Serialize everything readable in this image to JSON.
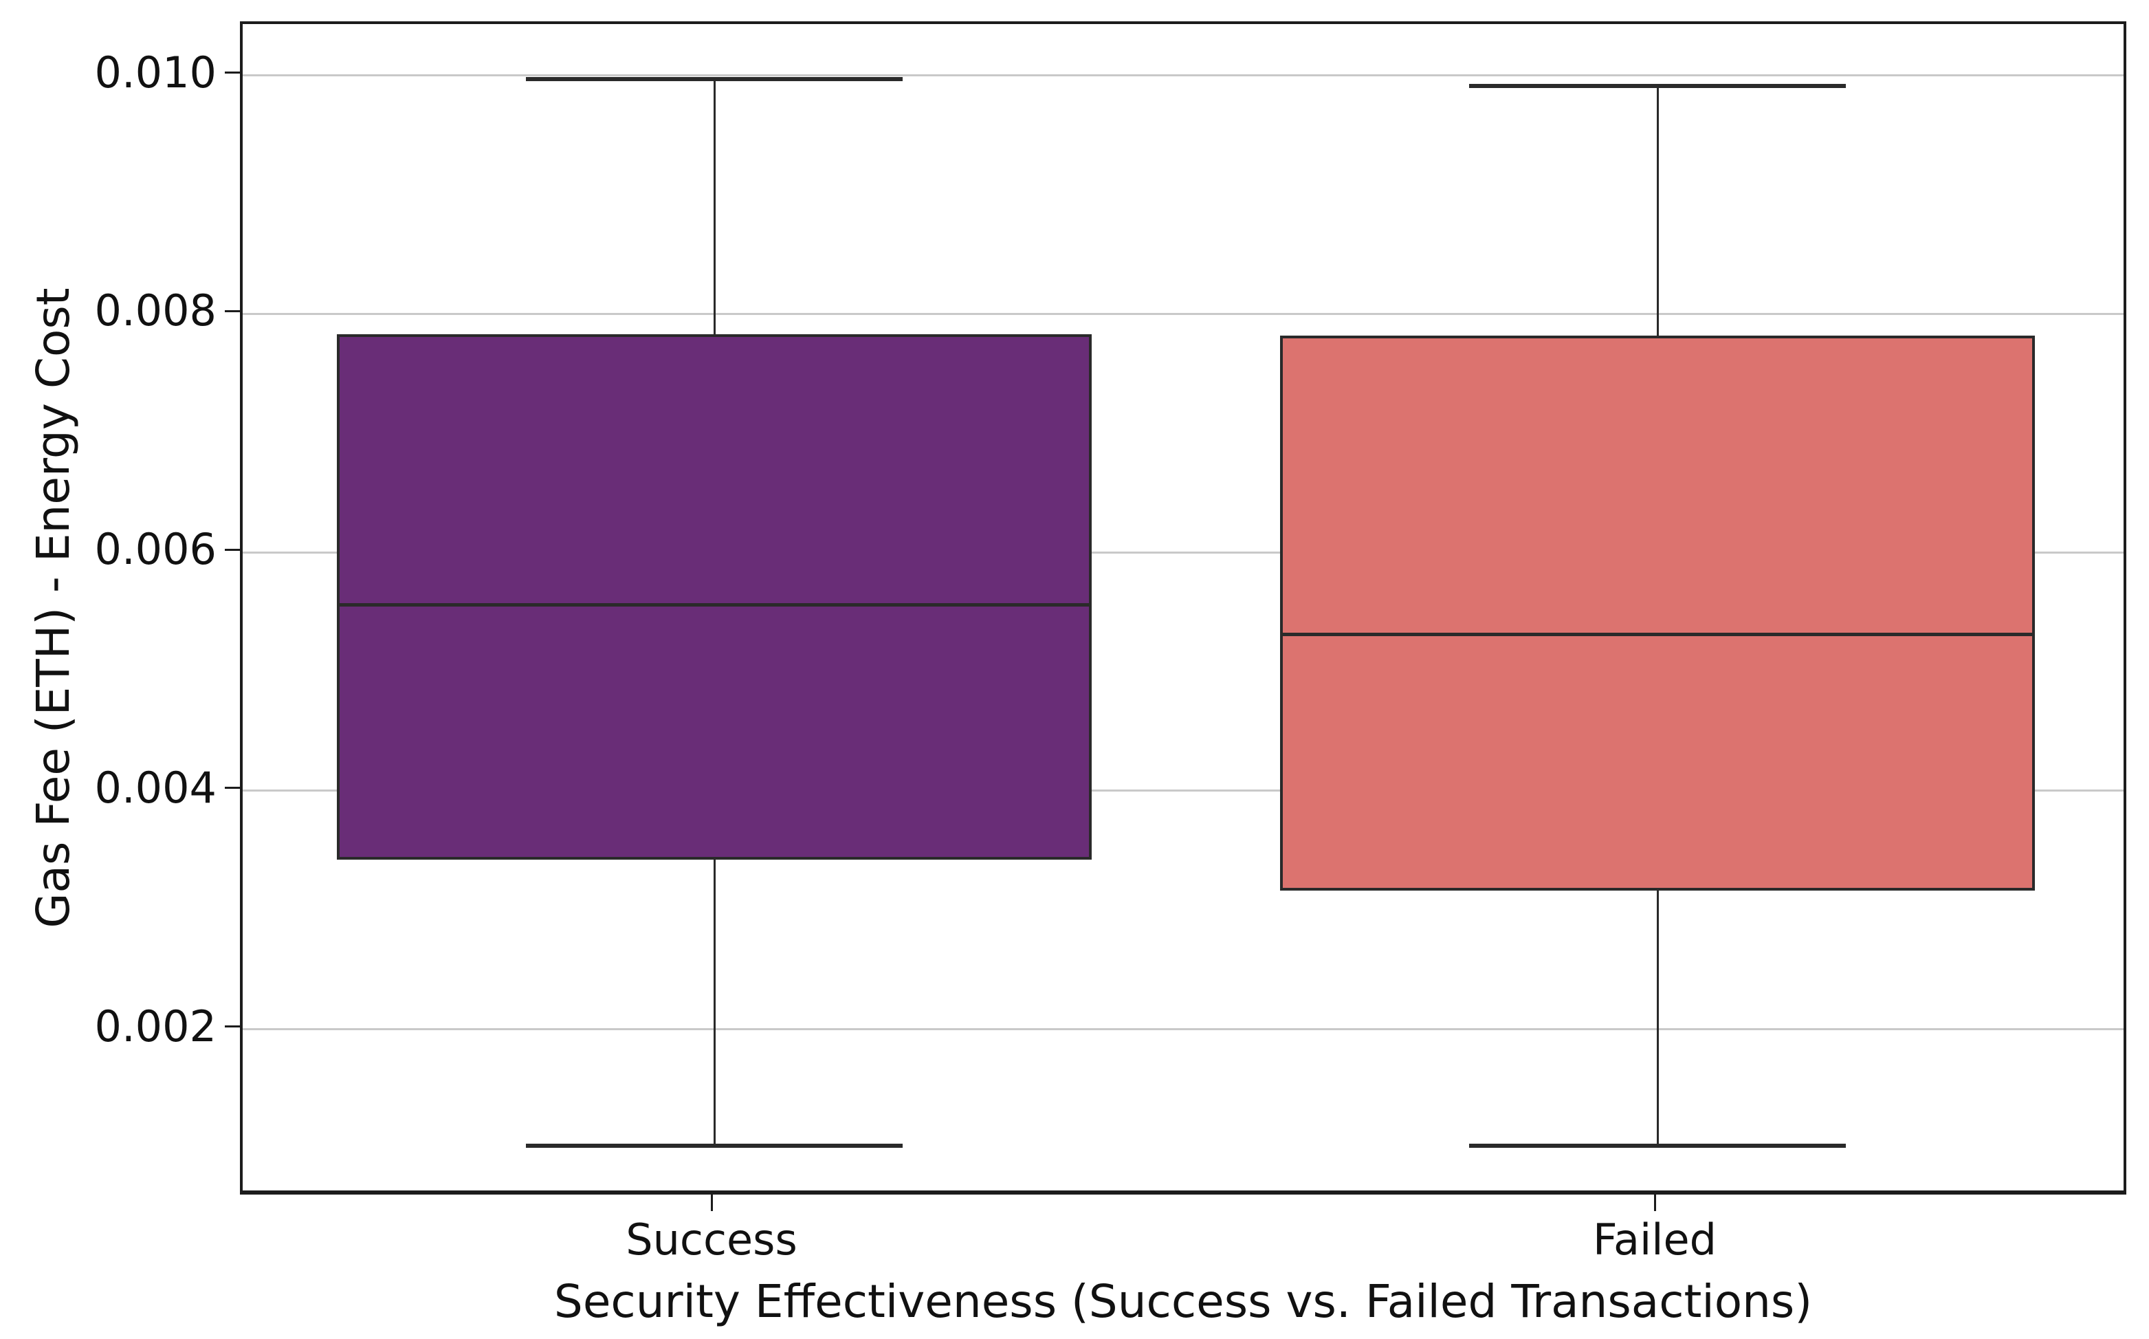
{
  "chart_data": {
    "type": "boxplot",
    "title": "",
    "xlabel": "Security Effectiveness (Success vs. Failed Transactions)",
    "ylabel": "Gas Fee (ETH) - Energy Cost",
    "categories": [
      "Success",
      "Failed"
    ],
    "yticks": [
      0.01,
      0.008,
      0.006,
      0.004,
      0.002
    ],
    "ytick_labels": [
      "0.010",
      "0.008",
      "0.006",
      "0.004",
      "0.002"
    ],
    "ylim": [
      0.00059,
      0.01043
    ],
    "grid": true,
    "legend": false,
    "series": [
      {
        "name": "Success",
        "whisker_low": 0.00102,
        "q1": 0.00342,
        "median": 0.00556,
        "q3": 0.00783,
        "whisker_high": 0.00997,
        "fill_color": "#692d77"
      },
      {
        "name": "Failed",
        "whisker_low": 0.00102,
        "q1": 0.00316,
        "median": 0.00531,
        "q3": 0.00782,
        "whisker_high": 0.00991,
        "fill_color": "#dc736f"
      }
    ],
    "colors": {
      "box_edge": "#2a2a2a",
      "median": "#2a2a2a",
      "whisker": "#2a2a2a",
      "cap": "#2a2a2a",
      "grid": "#c9c9c9",
      "spine": "#1c1c1c",
      "tick": "#1c1c1c",
      "text": "#111111",
      "background": "#ffffff"
    }
  }
}
